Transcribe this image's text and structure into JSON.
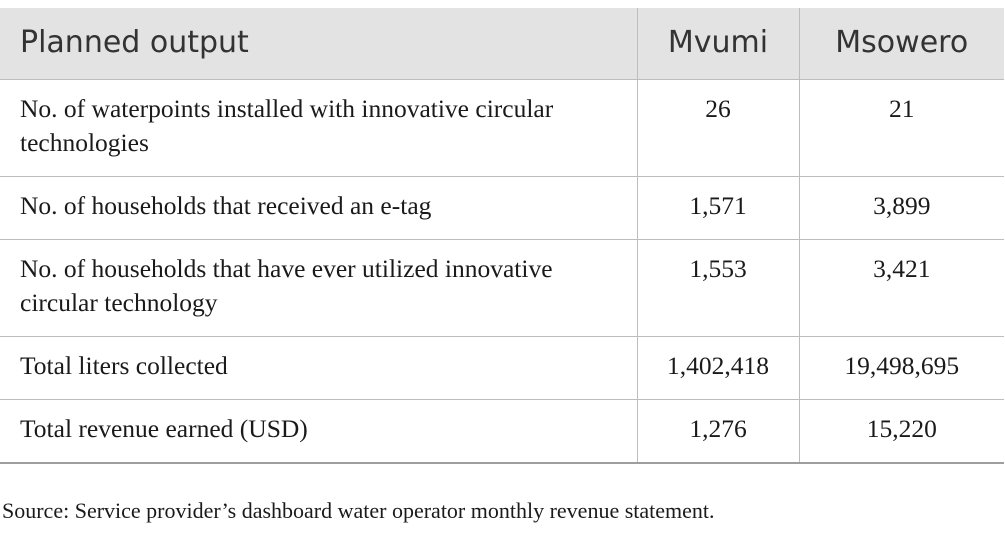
{
  "table": {
    "headers": [
      "Planned output",
      "Mvumi",
      "Msowero"
    ],
    "rows": [
      {
        "label": "No. of waterpoints installed with innovative circular technologies",
        "mvumi": "26",
        "msowero": "21"
      },
      {
        "label": "No. of households that received an e-tag",
        "mvumi": "1,571",
        "msowero": "3,899"
      },
      {
        "label": "No. of households that have ever utilized innovative circular technology",
        "mvumi": "1,553",
        "msowero": "3,421"
      },
      {
        "label": "Total liters collected",
        "mvumi": "1,402,418",
        "msowero": "19,498,695"
      },
      {
        "label": "Total revenue earned (USD)",
        "mvumi": "1,276",
        "msowero": "15,220"
      }
    ]
  },
  "footnote": "Source: Service provider’s dashboard water operator monthly revenue statement."
}
